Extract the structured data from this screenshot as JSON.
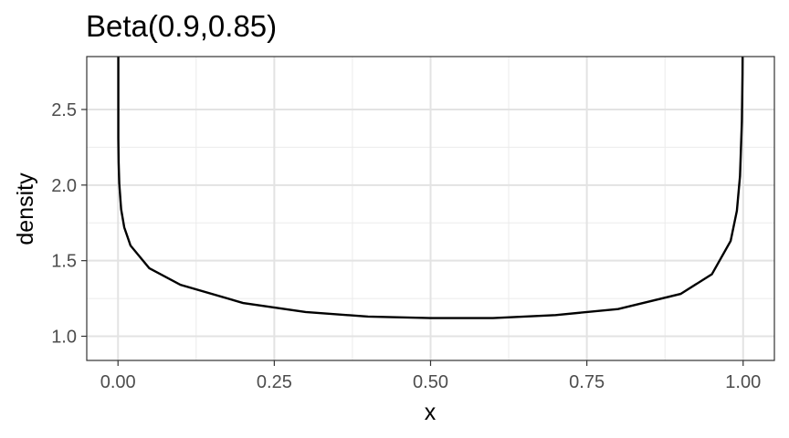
{
  "chart_data": {
    "type": "line",
    "title": "Beta(0.9,0.85)",
    "xlabel": "x",
    "ylabel": "density",
    "distribution": {
      "family": "Beta",
      "alpha": 0.9,
      "beta": 0.85
    },
    "xlim": [
      -0.05,
      1.05
    ],
    "ylim": [
      0.84,
      2.85
    ],
    "x_ticks": [
      0.0,
      0.25,
      0.5,
      0.75,
      1.0
    ],
    "x_tick_labels": [
      "0.00",
      "0.25",
      "0.50",
      "0.75",
      "1.00"
    ],
    "y_ticks": [
      1.0,
      1.5,
      2.0,
      2.5
    ],
    "y_tick_labels": [
      "1.0",
      "1.5",
      "2.0",
      "2.5"
    ],
    "x": [
      0.0005,
      0.001,
      0.002,
      0.005,
      0.01,
      0.02,
      0.05,
      0.1,
      0.2,
      0.3,
      0.4,
      0.5,
      0.6,
      0.7,
      0.8,
      0.9,
      0.95,
      0.98,
      0.99,
      0.995,
      0.998,
      0.999,
      0.9995
    ],
    "series": [
      {
        "values": [
          2.31,
          2.15,
          2.01,
          1.84,
          1.72,
          1.6,
          1.45,
          1.34,
          1.22,
          1.16,
          1.13,
          1.12,
          1.12,
          1.14,
          1.18,
          1.28,
          1.41,
          1.63,
          1.83,
          2.06,
          2.42,
          2.74,
          3.1
        ]
      }
    ],
    "grid": true,
    "legend": "none",
    "line_color": "#000000",
    "theme": "bw"
  }
}
